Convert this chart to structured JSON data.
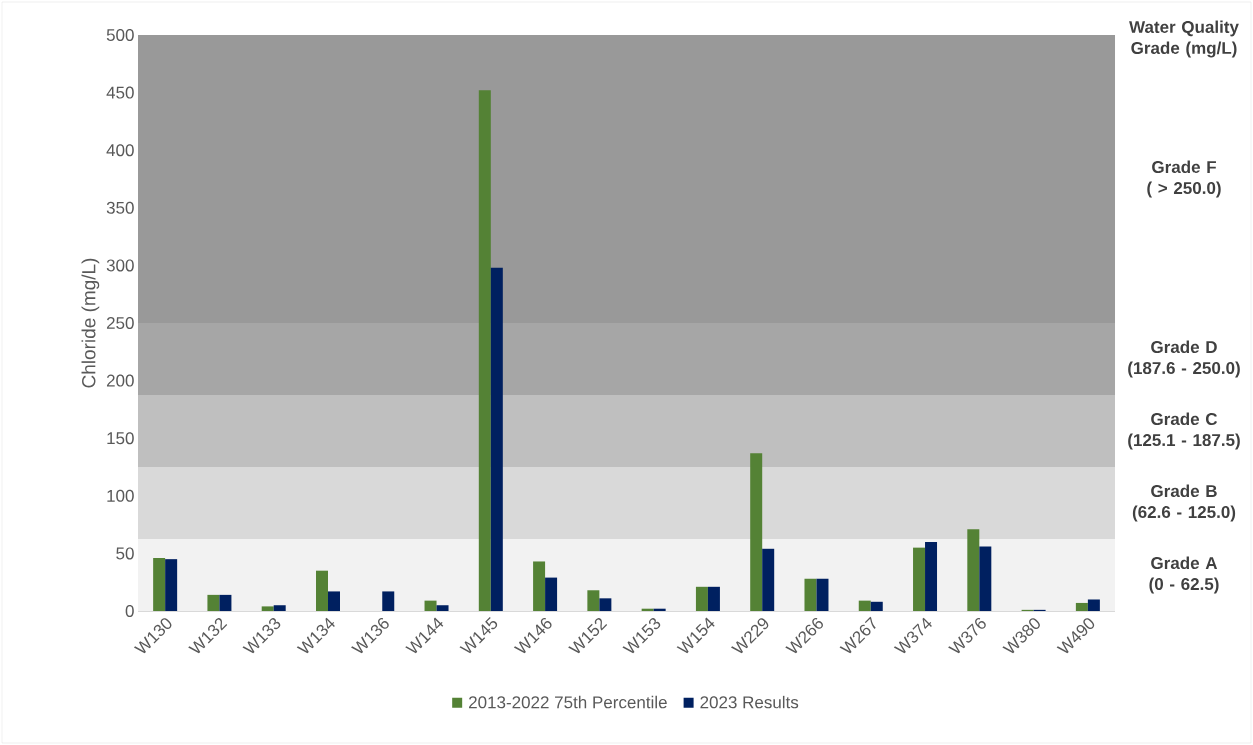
{
  "chart_data": {
    "type": "bar",
    "ylabel": "Chloride (mg/L)",
    "categories": [
      "W130",
      "W132",
      "W133",
      "W134",
      "W136",
      "W144",
      "W145",
      "W146",
      "W152",
      "W153",
      "W154",
      "W229",
      "W266",
      "W267",
      "W374",
      "W376",
      "W380",
      "W490"
    ],
    "series": [
      {
        "name": "2013-2022 75th Percentile",
        "color": "#548235",
        "values": [
          46,
          14,
          4,
          35,
          null,
          9,
          452,
          43,
          18,
          2,
          21,
          137,
          28,
          9,
          55,
          71,
          1,
          7
        ]
      },
      {
        "name": "2023 Results",
        "color": "#002060",
        "values": [
          45,
          14,
          5,
          17,
          17,
          5,
          298,
          29,
          11,
          2,
          21,
          54,
          28,
          8,
          60,
          56,
          1,
          10
        ]
      }
    ],
    "ylim": [
      0,
      500
    ],
    "yticks": [
      0,
      50,
      100,
      150,
      200,
      250,
      300,
      350,
      400,
      450,
      500
    ],
    "bands": [
      {
        "axis": "y",
        "from": 0,
        "to": 62.5,
        "label": "Grade A (0 - 62.5)",
        "color": "#f2f2f2"
      },
      {
        "axis": "y",
        "from": 62.5,
        "to": 125,
        "label": "Grade B (62.6 - 125.0)",
        "color": "#d9d9d9"
      },
      {
        "axis": "y",
        "from": 125,
        "to": 187.5,
        "label": "Grade C (125.1 - 187.5)",
        "color": "#bfbfbf"
      },
      {
        "axis": "y",
        "from": 187.5,
        "to": 250,
        "label": "Grade D (187.6 - 250.0)",
        "color": "#a6a6a6"
      },
      {
        "axis": "y",
        "from": 250,
        "to": 500,
        "label": "Grade F ( > 250.0)",
        "color": "#999999"
      }
    ],
    "annotations": [
      "Water Quality Grade (mg/L)"
    ],
    "legend": "bottom"
  }
}
